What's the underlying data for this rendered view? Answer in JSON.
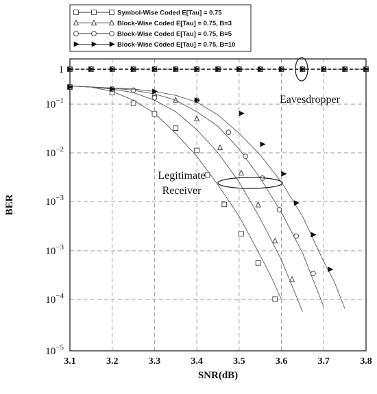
{
  "chart_data": {
    "type": "line",
    "xlabel": "SNR(dB)",
    "ylabel": "BER",
    "xlim": [
      3.1,
      3.8
    ],
    "x_ticks": [
      "3.1",
      "3.2",
      "3.3",
      "3.4",
      "3.5",
      "3.6",
      "3.7",
      "3.8"
    ],
    "y_scale": "log",
    "y_ticks": [
      {
        "base": "1",
        "exp": ""
      },
      {
        "base": "10",
        "exp": "−1"
      },
      {
        "base": "10",
        "exp": "−2"
      },
      {
        "base": "10",
        "exp": "−3"
      },
      {
        "base": "10",
        "exp": "−3"
      },
      {
        "base": "10",
        "exp": "−4"
      },
      {
        "base": "10",
        "exp": "−5"
      }
    ],
    "grid": true,
    "legend_position": "top-left",
    "annotations": {
      "eavesdropper": "Eavesdropper",
      "legitimate_line1": "Legitimate",
      "legitimate_line2": "Receiver"
    },
    "series": [
      {
        "name": "Symbol-Wise Coded E[Tau] = 0.75",
        "marker": "square",
        "legitimate": [
          [
            3.1,
            0.23
          ],
          [
            3.15,
            0.22
          ],
          [
            3.2,
            0.18
          ],
          [
            3.25,
            0.12
          ],
          [
            3.3,
            0.065
          ],
          [
            3.35,
            0.025
          ],
          [
            3.4,
            0.0085
          ],
          [
            3.45,
            0.0022
          ],
          [
            3.5,
            0.0005
          ],
          [
            3.55,
            8e-05
          ],
          [
            3.575,
            3e-05
          ],
          [
            3.6,
            1e-05
          ]
        ],
        "markers": [
          [
            3.1,
            0.22
          ],
          [
            3.2,
            0.17
          ],
          [
            3.25,
            0.105
          ],
          [
            3.3,
            0.063
          ],
          [
            3.35,
            0.032
          ],
          [
            3.4,
            0.0112
          ],
          [
            3.425,
            0.0035
          ],
          [
            3.465,
            0.00087
          ],
          [
            3.505,
            0.00022
          ],
          [
            3.545,
            5.62e-05
          ],
          [
            3.585,
            1.02e-05
          ]
        ],
        "eavesdropper": 0.5
      },
      {
        "name": "Block-Wise Coded E[Tau] = 0.75, B=3",
        "marker": "triangle",
        "legitimate": [
          [
            3.1,
            0.23
          ],
          [
            3.15,
            0.22
          ],
          [
            3.2,
            0.2
          ],
          [
            3.25,
            0.17
          ],
          [
            3.3,
            0.12
          ],
          [
            3.35,
            0.07
          ],
          [
            3.4,
            0.03
          ],
          [
            3.45,
            0.01
          ],
          [
            3.5,
            0.0025
          ],
          [
            3.55,
            0.00045
          ],
          [
            3.6,
            6.5e-05
          ],
          [
            3.65,
            5.8e-06
          ]
        ],
        "markers": [
          [
            3.1,
            0.22
          ],
          [
            3.2,
            0.2
          ],
          [
            3.3,
            0.16
          ],
          [
            3.35,
            0.12
          ],
          [
            3.4,
            0.05
          ],
          [
            3.455,
            0.0127
          ],
          [
            3.505,
            0.00385
          ],
          [
            3.545,
            0.00085
          ],
          [
            3.585,
            0.000158
          ],
          [
            3.625,
            2.57e-05
          ]
        ],
        "eavesdropper": 0.5
      },
      {
        "name": "Block-Wise Coded E[Tau] = 0.75, B=5",
        "marker": "circle",
        "legitimate": [
          [
            3.1,
            0.23
          ],
          [
            3.15,
            0.22
          ],
          [
            3.2,
            0.21
          ],
          [
            3.25,
            0.19
          ],
          [
            3.3,
            0.16
          ],
          [
            3.35,
            0.12
          ],
          [
            3.4,
            0.07
          ],
          [
            3.45,
            0.035
          ],
          [
            3.5,
            0.012
          ],
          [
            3.55,
            0.003
          ],
          [
            3.6,
            0.0006
          ],
          [
            3.65,
            9e-05
          ],
          [
            3.7,
            7.2e-06
          ]
        ],
        "markers": [
          [
            3.1,
            0.22
          ],
          [
            3.2,
            0.2
          ],
          [
            3.25,
            0.19
          ],
          [
            3.3,
            0.134
          ],
          [
            3.4,
            0.12
          ],
          [
            3.475,
            0.0263
          ],
          [
            3.515,
            0.00849
          ],
          [
            3.555,
            0.00302
          ],
          [
            3.595,
            0.000681
          ],
          [
            3.635,
            0.000198
          ],
          [
            3.675,
            3.41e-05
          ]
        ],
        "eavesdropper": 0.5
      },
      {
        "name": "Block-Wise Coded E[Tau] = 0.75, B=10",
        "marker": "filled-triangle-right",
        "legitimate": [
          [
            3.1,
            0.23
          ],
          [
            3.15,
            0.22
          ],
          [
            3.2,
            0.21
          ],
          [
            3.25,
            0.2
          ],
          [
            3.3,
            0.18
          ],
          [
            3.35,
            0.15
          ],
          [
            3.4,
            0.11
          ],
          [
            3.45,
            0.06
          ],
          [
            3.5,
            0.025
          ],
          [
            3.55,
            0.009
          ],
          [
            3.6,
            0.0025
          ],
          [
            3.65,
            0.0005
          ],
          [
            3.7,
            6e-05
          ],
          [
            3.725,
            2.32e-05
          ],
          [
            3.75,
            6.6e-06
          ]
        ],
        "markers": [
          [
            3.1,
            0.22
          ],
          [
            3.2,
            0.2
          ],
          [
            3.3,
            0.18
          ],
          [
            3.4,
            0.12
          ],
          [
            3.505,
            0.0646
          ],
          [
            3.555,
            0.015
          ],
          [
            3.605,
            0.00369
          ],
          [
            3.635,
            0.00093
          ],
          [
            3.675,
            0.000212
          ],
          [
            3.715,
            4.15e-05
          ]
        ],
        "eavesdropper": 0.5
      }
    ]
  }
}
